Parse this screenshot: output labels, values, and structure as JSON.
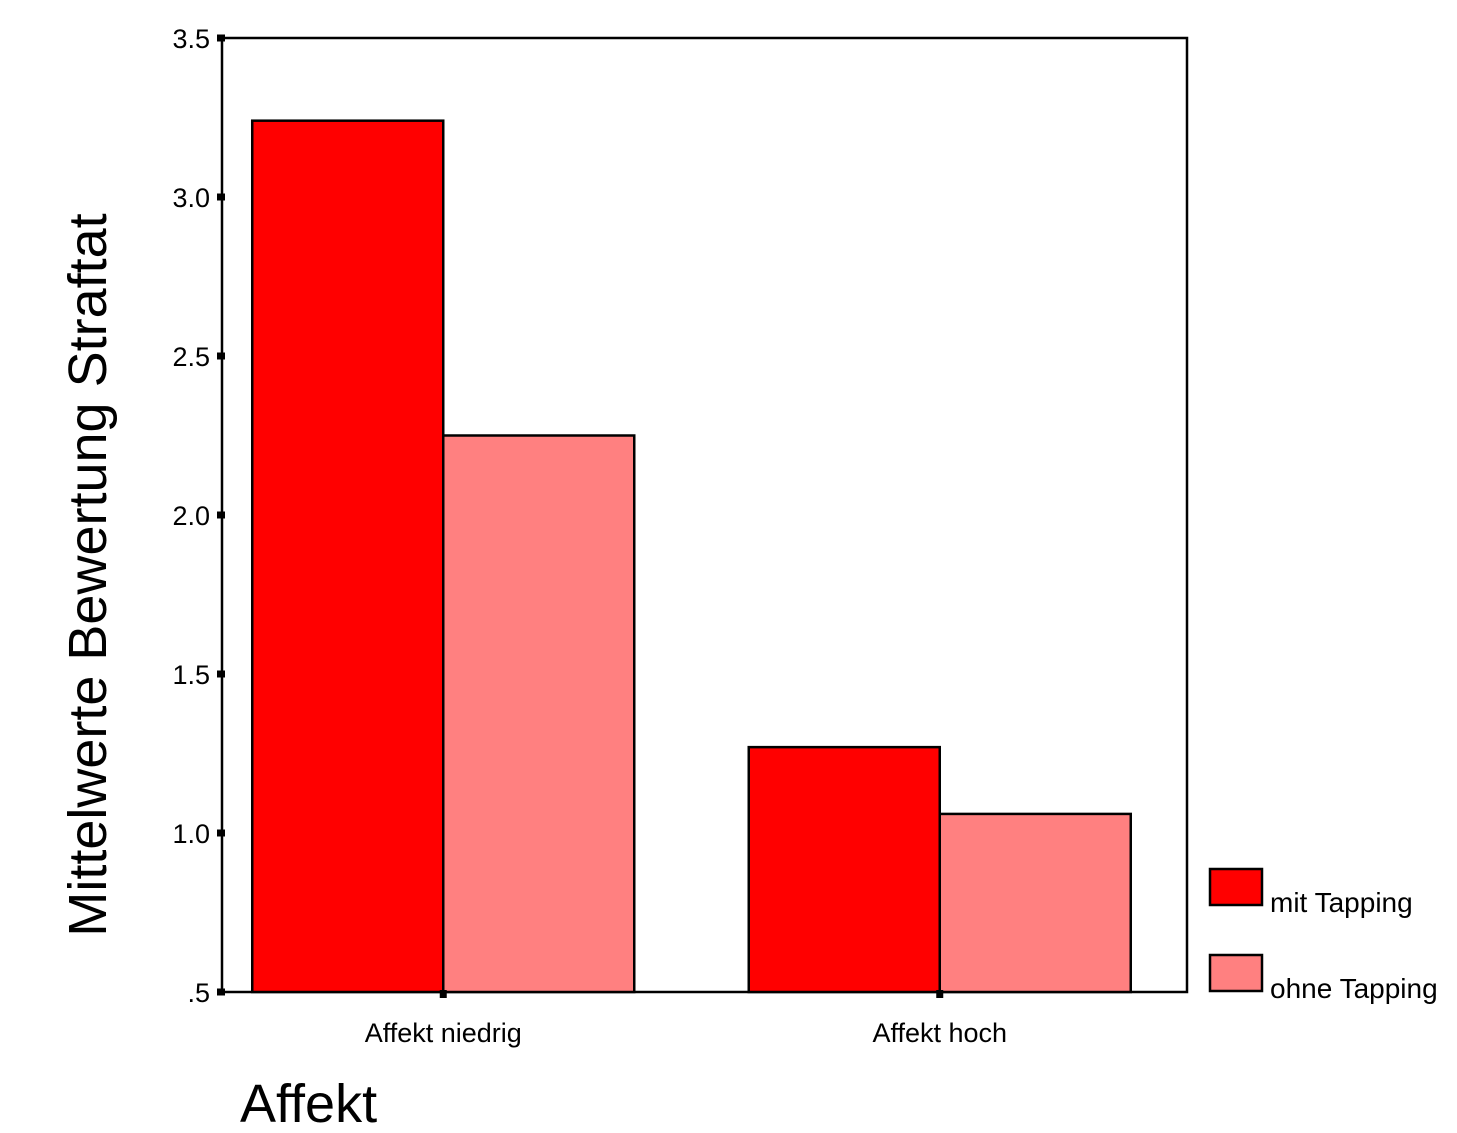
{
  "chart_data": {
    "type": "bar",
    "title": "",
    "xlabel": "Affekt",
    "ylabel": "Mittelwerte Bewertung Straftat",
    "categories": [
      "Affekt niedrig",
      "Affekt hoch"
    ],
    "series": [
      {
        "name": "mit Tapping",
        "values": [
          3.24,
          1.27
        ],
        "color": "#ff0000"
      },
      {
        "name": "ohne Tapping",
        "values": [
          2.25,
          1.06
        ],
        "color": "#ff8080"
      }
    ],
    "ylim": [
      0.5,
      3.5
    ],
    "yticks": [
      0.5,
      1.0,
      1.5,
      2.0,
      2.5,
      3.0,
      3.5
    ],
    "ytick_labels": [
      ".5",
      "1.0",
      "1.5",
      "2.0",
      "2.5",
      "3.0",
      "3.5"
    ],
    "grid": false,
    "legend_position": "bottom-right, outside plot"
  }
}
